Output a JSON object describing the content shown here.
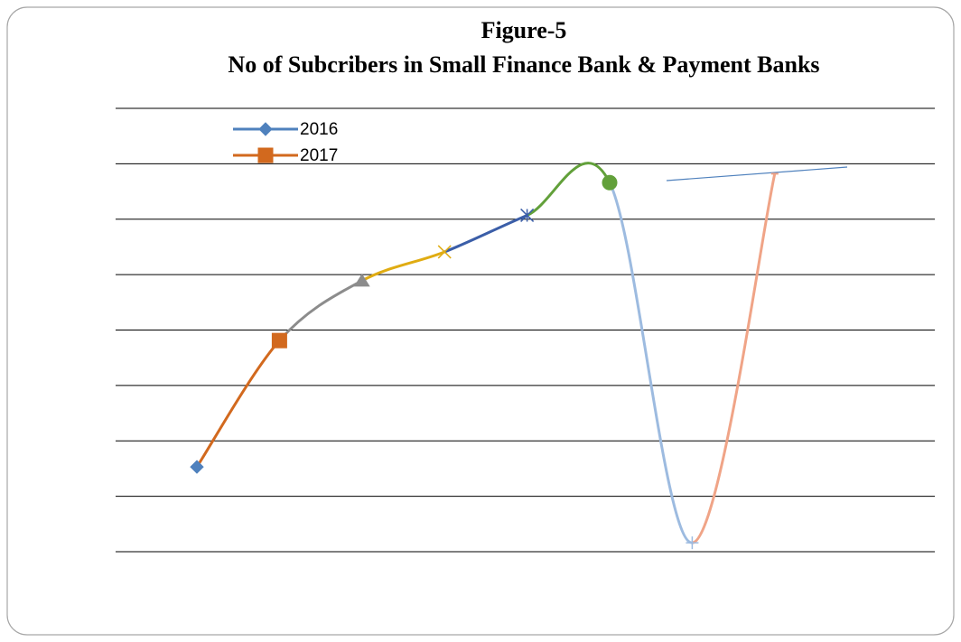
{
  "chart_data": {
    "type": "line",
    "title": "Figure-5",
    "subtitle": "No of Subcribers in Small Finance Bank & Payment Banks",
    "categories": [
      null,
      null,
      null,
      null,
      null,
      null,
      null,
      null
    ],
    "legend": [
      "2016",
      "2017"
    ],
    "series": [
      {
        "values": [
          1.53,
          3.81,
          4.89,
          5.41,
          6.07,
          6.66,
          0.16,
          6.82
        ],
        "colors": [
          "#4f81bd",
          "#d2691e",
          "#8c8c8c",
          "#e0ac12",
          "#3b5ea8",
          "#62a03a",
          "#9dbbe0",
          "#f0a487"
        ],
        "markers": [
          "diamond",
          "square",
          "triangle",
          "x",
          "star",
          "circle",
          "plus",
          "dash"
        ]
      }
    ],
    "ylim": [
      0,
      8
    ],
    "yticks": [
      0,
      1,
      2,
      3,
      4,
      5,
      6,
      7,
      8
    ],
    "grid": true,
    "smooth": true
  }
}
